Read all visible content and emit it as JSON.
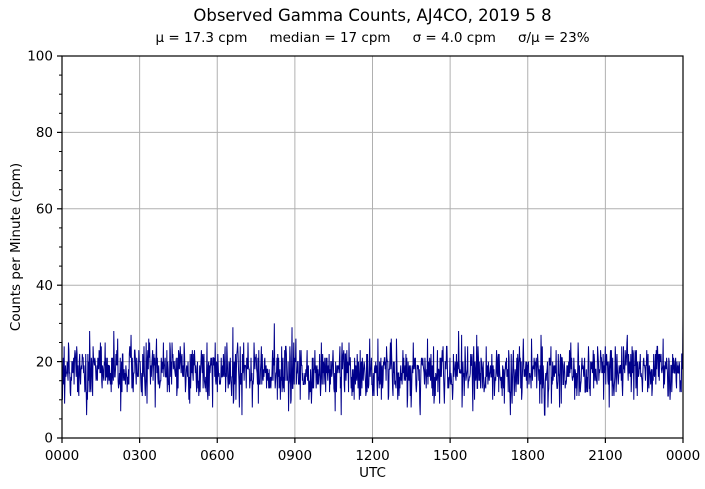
{
  "title": "Observed Gamma Counts, AJ4CO, 2019 5 8",
  "stats": {
    "mu": "μ = 17.3 cpm",
    "median": "median = 17 cpm",
    "sigma": "σ = 4.0 cpm",
    "sigma_over_mu": "σ/μ = 23%"
  },
  "chart_data": {
    "type": "line",
    "title": "Observed Gamma Counts, AJ4CO, 2019 5 8",
    "subtitle": "μ = 17.3 cpm     median = 17 cpm     σ = 4.0 cpm     σ/μ = 23%",
    "xlabel": "UTC",
    "ylabel": "Counts per Minute (cpm)",
    "xlim_hours": [
      0,
      24
    ],
    "ylim": [
      0,
      100
    ],
    "x_tick_hours": [
      0,
      3,
      6,
      9,
      12,
      15,
      18,
      21,
      24
    ],
    "x_tick_labels": [
      "0000",
      "0300",
      "0600",
      "0900",
      "1200",
      "1500",
      "1800",
      "2100",
      "0000"
    ],
    "y_ticks": [
      0,
      20,
      40,
      60,
      80,
      100
    ],
    "y_minor_tick_step": 5,
    "grid": true,
    "legend_position": "none",
    "line_color": "#00008b",
    "grid_color": "#b0b0b0",
    "axis_color": "#000000",
    "series": [
      {
        "name": "observed gamma counts",
        "n_points": 1440,
        "interval_minutes": 1,
        "mean_cpm": 17.3,
        "median_cpm": 17,
        "sigma_cpm": 4.0,
        "sigma_over_mean_pct": 23,
        "observed_min_cpm": 6,
        "observed_max_cpm": 32,
        "distribution": "poisson-like integer counts fluctuating about the mean",
        "prng_seed": 20190508
      }
    ]
  }
}
